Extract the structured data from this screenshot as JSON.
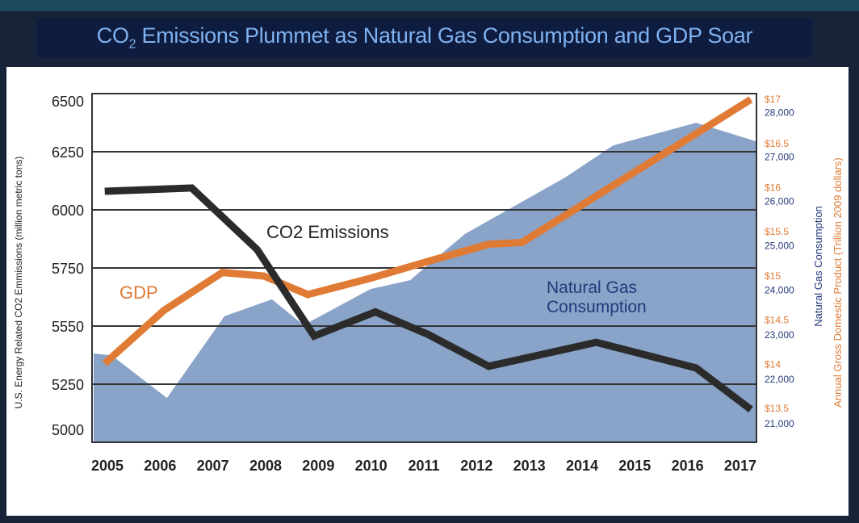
{
  "title": {
    "prefix": "CO",
    "subscript": "2",
    "rest": " Emissions Plummet as Natural Gas Consumption and GDP Soar"
  },
  "chart_data": {
    "type": "line",
    "title": "CO2 Emissions Plummet as Natural Gas Consumption and GDP Soar",
    "x_ticks": [
      "2005",
      "2006",
      "2007",
      "2008",
      "2009",
      "2010",
      "2011",
      "2012",
      "2013",
      "2014",
      "2015",
      "2016",
      "2017"
    ],
    "xlim": [
      2005,
      2017
    ],
    "left_axis": {
      "label": "U.S. Energy Related CO2 Emmissions (million metric tons)",
      "tick_labels": [
        "5000",
        "5250",
        "5550",
        "5750",
        "6000",
        "6250",
        "6500"
      ],
      "ylim": [
        5000,
        6500
      ]
    },
    "right_axis_gdp": {
      "label": "Annual Gross Domestic Product (Trillion 2009 dollars)",
      "tick_labels": [
        "$13.5",
        "$14",
        "$14.5",
        "$15",
        "$15.5",
        "$16",
        "$16.5",
        "$17"
      ],
      "tick_values": [
        13.5,
        14,
        14.5,
        15,
        15.5,
        16,
        16.5,
        17
      ],
      "color": "#e07b35"
    },
    "right_axis_gas": {
      "label": "Natural Gas Consumption",
      "tick_labels": [
        "21,000",
        "22,000",
        "23,000",
        "24,000",
        "25,000",
        "26,000",
        "27,000",
        "28,000"
      ],
      "tick_values": [
        21000,
        22000,
        23000,
        24000,
        25000,
        26000,
        27000,
        28000
      ],
      "color": "#24397a"
    },
    "grid": true,
    "series": [
      {
        "name": "Natural Gas Consumption",
        "type": "area",
        "axis": "gas",
        "color": "#8aa3c8",
        "x": [
          2004.74,
          2005.08,
          2006.13,
          2007.22,
          2008.12,
          2008.72,
          2009.99,
          2010.74,
          2011.78,
          2013.68,
          2014.59,
          2016.16,
          2017.33
        ],
        "y": [
          22560,
          22520,
          21560,
          23400,
          23780,
          23200,
          24010,
          24210,
          25250,
          26520,
          27240,
          27750,
          27330
        ]
      },
      {
        "name": "GDP",
        "type": "line",
        "axis": "gdp",
        "color": "#e07b35",
        "x": [
          2004.95,
          2006.07,
          2007.18,
          2007.97,
          2008.8,
          2009.96,
          2011.1,
          2012.23,
          2012.86,
          2017.2
        ],
        "y": [
          14.0,
          14.6,
          15.03,
          14.99,
          14.78,
          14.96,
          15.16,
          15.35,
          15.37,
          16.99
        ]
      },
      {
        "name": "CO2 Emissions",
        "type": "line",
        "axis": "left",
        "color": "#2b2b2b",
        "x": [
          2004.95,
          2006.6,
          2007.84,
          2008.92,
          2010.08,
          2011.08,
          2012.23,
          2014.27,
          2016.16,
          2017.2
        ],
        "y": [
          6080,
          6094,
          5829,
          5457,
          5561,
          5464,
          5327,
          5430,
          5320,
          5141
        ]
      }
    ],
    "annotations": {
      "co2": "CO2 Emissions",
      "gdp": "GDP",
      "gas_line1": "Natural Gas",
      "gas_line2": "Consumption"
    }
  }
}
